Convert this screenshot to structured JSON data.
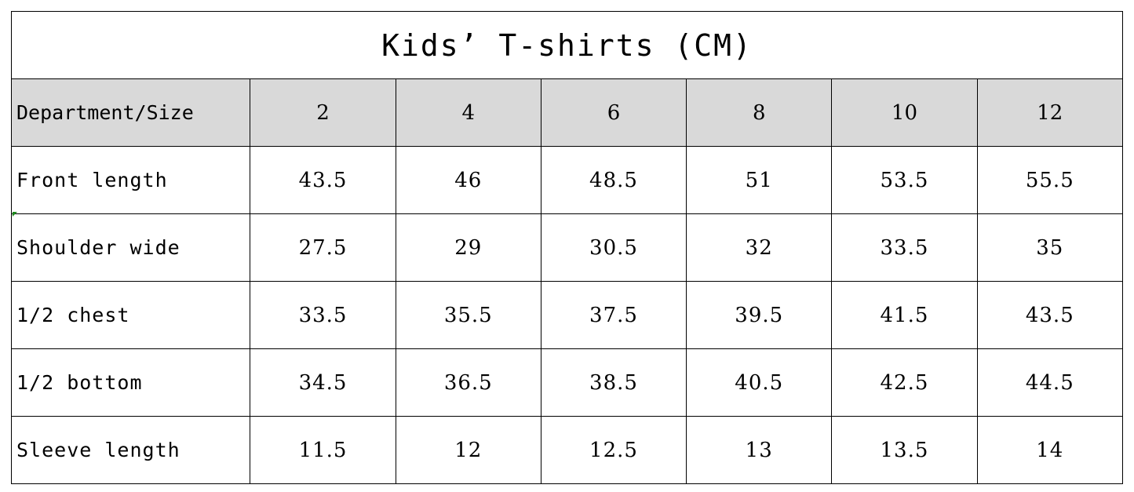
{
  "table": {
    "title": "Kids’ T-shirts (CM)",
    "header_label": "Department/Size",
    "sizes": [
      "2",
      "4",
      "6",
      "8",
      "10",
      "12"
    ],
    "rows": [
      {
        "label": "Front length",
        "values": [
          "43.5",
          "46",
          "48.5",
          "51",
          "53.5",
          "55.5"
        ]
      },
      {
        "label": "Shoulder wide",
        "values": [
          "27.5",
          "29",
          "30.5",
          "32",
          "33.5",
          "35"
        ]
      },
      {
        "label": "1/2 chest",
        "values": [
          "33.5",
          "35.5",
          "37.5",
          "39.5",
          "41.5",
          "43.5"
        ]
      },
      {
        "label": "1/2 bottom",
        "values": [
          "34.5",
          "36.5",
          "38.5",
          "40.5",
          "42.5",
          "44.5"
        ]
      },
      {
        "label": "Sleeve length",
        "values": [
          "11.5",
          "12",
          "12.5",
          "13",
          "13.5",
          "14"
        ]
      }
    ]
  },
  "colors": {
    "header_bg": "#d9d9d9",
    "border": "#000000",
    "marker": "#1e8a1e"
  }
}
